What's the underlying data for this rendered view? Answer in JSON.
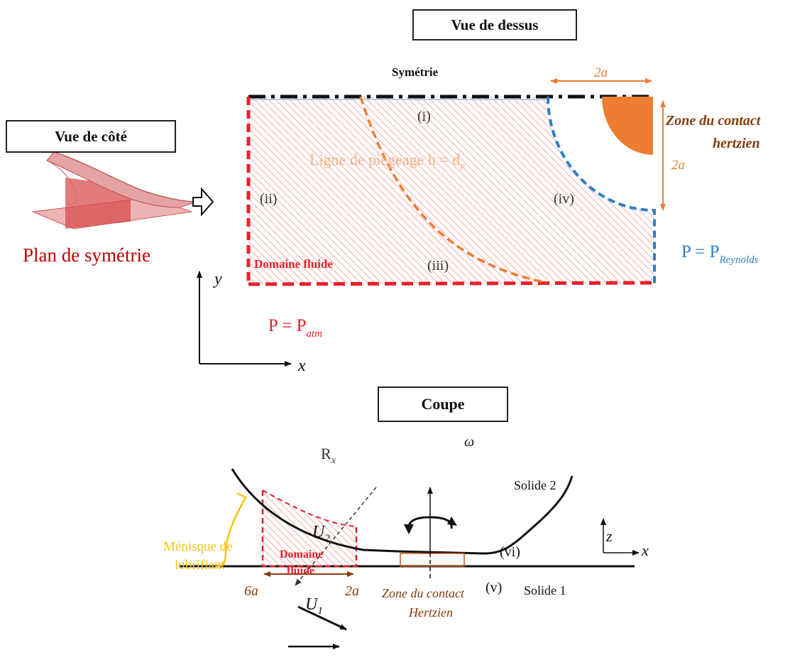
{
  "top_view": {
    "title": "Vue de dessus",
    "symmetry_label": "Symétrie",
    "width_label": "2a",
    "height_label": "2a",
    "hertz_zone_line1": "Zone du contact",
    "hertz_zone_line2": "hertzien",
    "trapping_line_label": "Ligne de piégeage h = d",
    "trapping_line_sub": "p",
    "region_i": "(i)",
    "region_ii": "(ii)",
    "region_iii": "(iii)",
    "region_iv": "(iv)",
    "fluid_domain": "Domaine fluide",
    "p_reynolds": "P = P",
    "p_reynolds_sub": "Reynolds",
    "p_atm": "P = P",
    "p_atm_sub": "atm",
    "axis_x": "x",
    "axis_y": "y"
  },
  "side_view": {
    "title": "Vue de côté",
    "symmetry_plane": "Plan de symétrie"
  },
  "section_view": {
    "title": "Coupe",
    "radius_label": "R",
    "radius_sub": "x",
    "omega": "ω",
    "solid2": "Solide 2",
    "solid1": "Solide 1",
    "u2": "U",
    "u2_sub": "2",
    "u1": "U",
    "u1_sub": "1",
    "meniscus_line1": "Ménisque de",
    "meniscus_line2": "lubrifiant",
    "fluid_line1": "Domaine",
    "fluid_line2": "fluide",
    "label_6a": "6a",
    "label_2a": "2a",
    "region_v": "(v)",
    "region_vi": "(vi)",
    "hertz_line1": "Zone du contact",
    "hertz_line2": "Hertzien",
    "axis_z": "z",
    "axis_x": "x"
  },
  "colors": {
    "red": "#e8202a",
    "blue": "#2f7fc1",
    "orange": "#ed7d31",
    "brown": "#843c0c",
    "yellow": "#f5c518",
    "hatch": "#f4a9a8"
  }
}
